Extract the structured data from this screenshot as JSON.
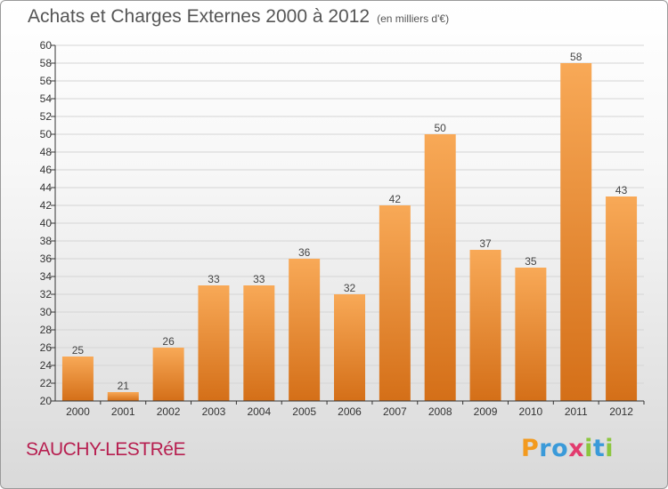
{
  "header": {
    "title": "Achats et Charges Externes 2000 à 2012",
    "subtitle": "(en milliers d'€)"
  },
  "footer": {
    "commune": "SAUCHY-LESTRéE",
    "logo": {
      "letters": [
        "P",
        "r",
        "o",
        "x",
        "i",
        "t",
        "i"
      ],
      "colors": [
        "#f39a1e",
        "#3a9ad9",
        "#3a9ad9",
        "#e23b6e",
        "#8cc63f",
        "#3a9ad9",
        "#8cc63f"
      ]
    }
  },
  "colors": {
    "bar_light": "#f8a957",
    "bar_dark": "#d46f18",
    "axis": "#333333",
    "grid": "#d5d5d5"
  },
  "chart_data": {
    "type": "bar",
    "title": "Achats et Charges Externes 2000 à 2012",
    "subtitle": "(en milliers d'€)",
    "categories": [
      "2000",
      "2001",
      "2002",
      "2003",
      "2004",
      "2005",
      "2006",
      "2007",
      "2008",
      "2009",
      "2010",
      "2011",
      "2012"
    ],
    "values": [
      25,
      21,
      26,
      33,
      33,
      36,
      32,
      42,
      50,
      37,
      35,
      58,
      43
    ],
    "ylim": [
      20,
      60
    ],
    "ytick_step": 2,
    "grid": true,
    "data_labels": true
  }
}
